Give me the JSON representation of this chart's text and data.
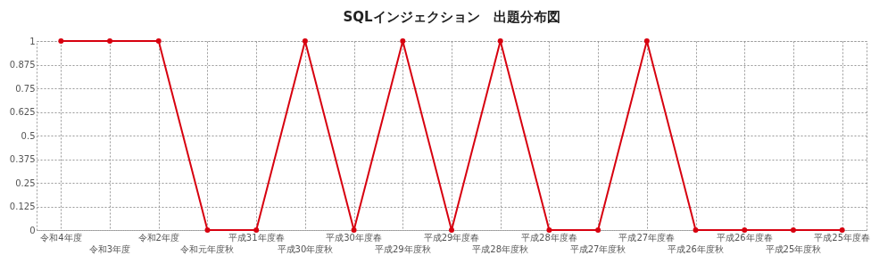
{
  "chart_data": {
    "type": "line",
    "title": "SQLインジェクション　出題分布図",
    "categories": [
      "令和4年度",
      "令和3年度",
      "令和2年度",
      "令和元年度秋",
      "平成31年度春",
      "平成30年度秋",
      "平成30年度春",
      "平成29年度秋",
      "平成29年度春",
      "平成28年度秋",
      "平成28年度春",
      "平成27年度秋",
      "平成27年度春",
      "平成26年度秋",
      "平成26年度春",
      "平成25年度秋",
      "平成25年度春"
    ],
    "series": [
      {
        "color": "#d7000f",
        "values": [
          1,
          1,
          1,
          0,
          0,
          1,
          0,
          1,
          0,
          1,
          0,
          0,
          1,
          0,
          0,
          0,
          0
        ]
      }
    ],
    "ylim": [
      0,
      1
    ],
    "yticks": [
      0,
      0.125,
      0.25,
      0.375,
      0.5,
      0.625,
      0.75,
      0.875,
      1
    ],
    "grid": true,
    "marker": "circle",
    "line_style": "solid",
    "legend": false
  }
}
